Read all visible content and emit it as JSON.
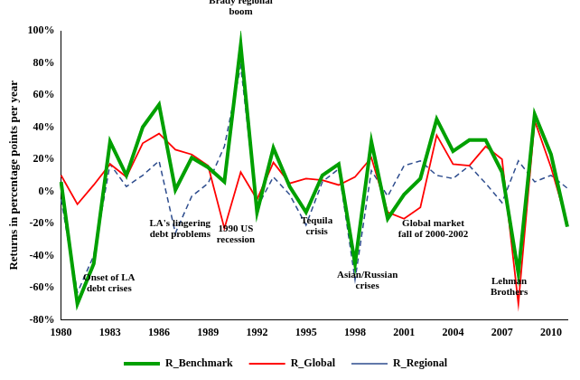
{
  "chart_data": {
    "type": "line",
    "y_label": "Returns in percentage points per year",
    "categories": [
      "1980",
      null,
      null,
      "1983",
      null,
      null,
      "1986",
      null,
      null,
      "1989",
      null,
      null,
      "1992",
      null,
      null,
      "1995",
      null,
      null,
      "1998",
      null,
      null,
      "2001",
      null,
      null,
      "2004",
      null,
      null,
      "2007",
      null,
      null,
      "2010",
      null
    ],
    "series": [
      {
        "name": "R_Global",
        "color": "#ff0000",
        "line_style": "solid",
        "marker": "none",
        "values": [
          10,
          -8,
          4,
          17,
          9,
          30,
          36,
          26,
          23,
          16,
          -23,
          12,
          -5,
          18,
          5,
          8,
          7,
          4,
          9,
          21,
          -13,
          -17,
          -10,
          35,
          17,
          16,
          28,
          20,
          -70,
          44,
          15,
          -20
        ]
      },
      {
        "name": "R_Regional",
        "color": "#2e4d8e",
        "line_style": "dashed",
        "marker": "none",
        "values": [
          -5,
          -63,
          -40,
          17,
          3,
          10,
          19,
          -26,
          -3,
          5,
          28,
          78,
          -10,
          9,
          -2,
          -21,
          6,
          14,
          -55,
          13,
          -3,
          16,
          19,
          10,
          8,
          16,
          5,
          -7,
          19,
          6,
          10,
          2
        ]
      },
      {
        "name": "R_Benchmark",
        "color": "#00a000",
        "line_style": "solid",
        "marker": "none",
        "values": [
          6,
          -70,
          -45,
          31,
          10,
          40,
          54,
          1,
          21,
          15,
          6,
          91,
          -13,
          27,
          3,
          -13,
          10,
          17,
          -45,
          31,
          -17,
          -2,
          8,
          45,
          25,
          32,
          32,
          12,
          -51,
          48,
          23,
          -22
        ]
      }
    ],
    "ylim": [
      -80,
      100
    ],
    "yticks": [
      {
        "value": -80,
        "label": "-80%"
      },
      {
        "value": -60,
        "label": "-60%"
      },
      {
        "value": -40,
        "label": "-40%"
      },
      {
        "value": -20,
        "label": "-20%"
      },
      {
        "value": 0,
        "label": "0%"
      },
      {
        "value": 20,
        "label": "20%"
      },
      {
        "value": 40,
        "label": "40%"
      },
      {
        "value": 60,
        "label": "60%"
      },
      {
        "value": 80,
        "label": "80%"
      },
      {
        "value": 100,
        "label": "100%"
      }
    ],
    "grid": false,
    "legend": "bottom",
    "annotations": [
      {
        "text": "Brady regional\nboom"
      },
      {
        "text": "LA's lingering\ndebt problems"
      },
      {
        "text": "Onset of LA\ndebt crises"
      },
      {
        "text": "1990 US\nrecession"
      },
      {
        "text": "Tequila\ncrisis"
      },
      {
        "text": "Asian/Russian\ncrises"
      },
      {
        "text": "Global market\nfall of 2000-2002"
      },
      {
        "text": "Lehman\nBrothers"
      }
    ]
  }
}
